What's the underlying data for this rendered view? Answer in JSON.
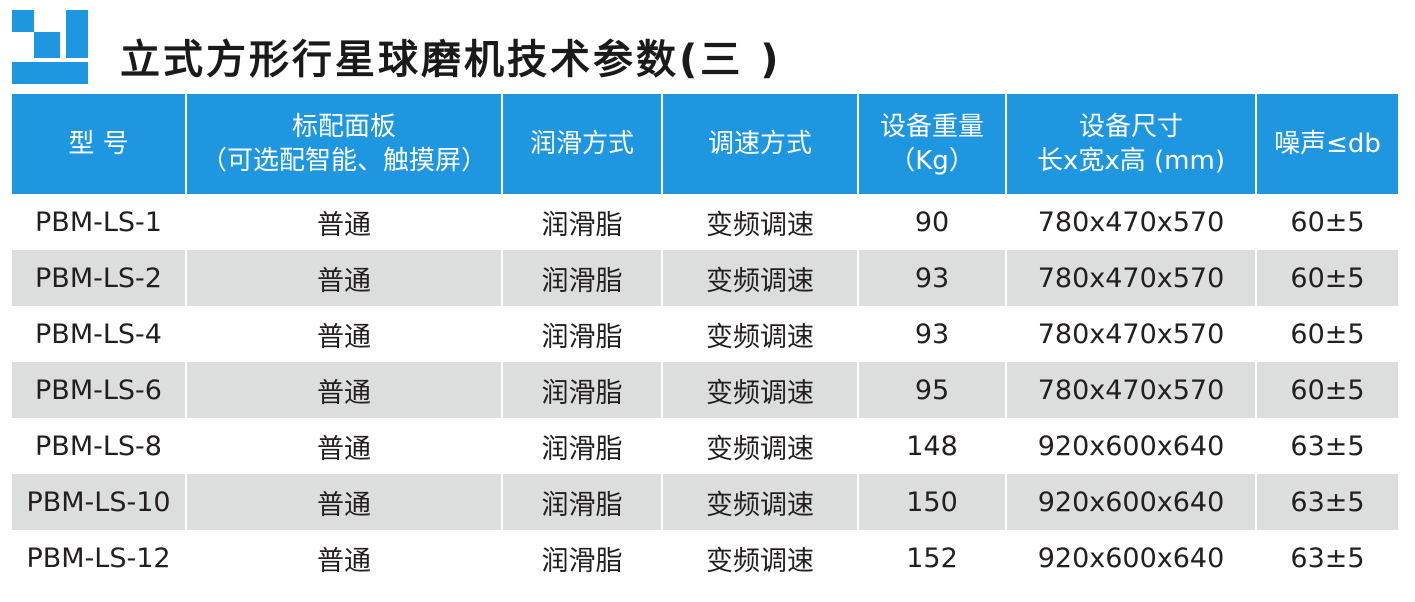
{
  "title": "立式方形行星球磨机技术参数(三 )",
  "colors": {
    "header_bg": "#1e96e0",
    "header_text": "#ffffff",
    "stripe": "#dcdddd",
    "logo": "#1e96e0"
  },
  "columns": [
    {
      "line1": "型 号",
      "line2": ""
    },
    {
      "line1": "标配面板",
      "line2": "（可选配智能、触摸屏）"
    },
    {
      "line1": "润滑方式",
      "line2": ""
    },
    {
      "line1": "调速方式",
      "line2": ""
    },
    {
      "line1": "设备重量",
      "line2": "（Kg）"
    },
    {
      "line1": "设备尺寸",
      "line2": "长x宽x高 (mm)"
    },
    {
      "line1": "噪声≤db",
      "line2": ""
    }
  ],
  "rows": [
    [
      "PBM-LS-1",
      "普通",
      "润滑脂",
      "变频调速",
      "90",
      "780x470x570",
      "60±5"
    ],
    [
      "PBM-LS-2",
      "普通",
      "润滑脂",
      "变频调速",
      "93",
      "780x470x570",
      "60±5"
    ],
    [
      "PBM-LS-4",
      "普通",
      "润滑脂",
      "变频调速",
      "93",
      "780x470x570",
      "60±5"
    ],
    [
      "PBM-LS-6",
      "普通",
      "润滑脂",
      "变频调速",
      "95",
      "780x470x570",
      "60±5"
    ],
    [
      "PBM-LS-8",
      "普通",
      "润滑脂",
      "变频调速",
      "148",
      "920x600x640",
      "63±5"
    ],
    [
      "PBM-LS-10",
      "普通",
      "润滑脂",
      "变频调速",
      "150",
      "920x600x640",
      "63±5"
    ],
    [
      "PBM-LS-12",
      "普通",
      "润滑脂",
      "变频调速",
      "152",
      "920x600x640",
      "63±5"
    ]
  ]
}
